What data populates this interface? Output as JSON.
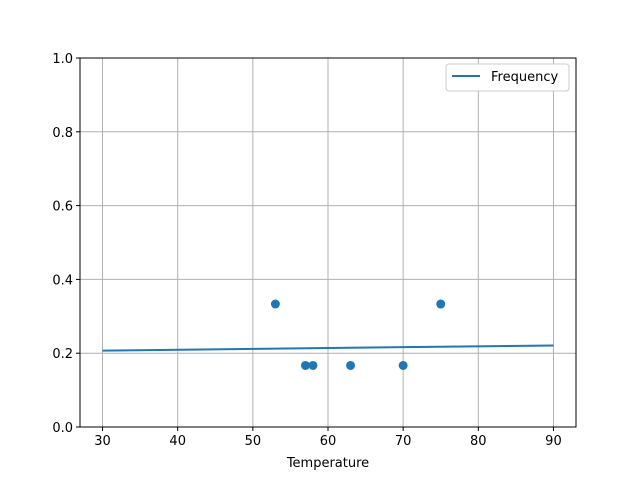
{
  "chart_data": {
    "type": "scatter",
    "xlabel": "Temperature",
    "ylabel": "",
    "xlim": [
      27,
      93
    ],
    "ylim": [
      0,
      1.0
    ],
    "xticks": [
      30,
      40,
      50,
      60,
      70,
      80,
      90
    ],
    "yticks": [
      "0.0",
      "0.2",
      "0.4",
      "0.6",
      "0.8",
      "1.0"
    ],
    "grid": true,
    "legend": {
      "placement": "top-right",
      "entries": [
        "Frequency"
      ]
    },
    "color": "#1f77b4",
    "scatter": {
      "x": [
        53,
        57,
        58,
        63,
        70,
        75
      ],
      "y": [
        0.3333,
        0.1667,
        0.1667,
        0.1667,
        0.1667,
        0.3333
      ]
    },
    "line": {
      "name": "Frequency",
      "x": [
        30,
        90
      ],
      "y": [
        0.207,
        0.221
      ]
    }
  }
}
